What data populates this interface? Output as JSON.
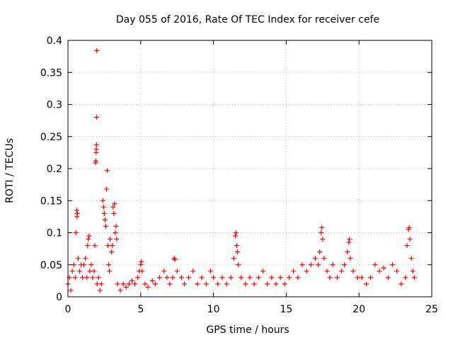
{
  "chart_data": {
    "type": "scatter",
    "title": "Day 055 of 2016, Rate Of TEC Index for receiver cefe",
    "xlabel": "GPS time / hours",
    "ylabel": "ROTI / TECUs",
    "xlim": [
      0,
      25
    ],
    "ylim": [
      0,
      0.4
    ],
    "grid": true,
    "marker": "plus",
    "color": "#ff0000",
    "x_ticks": [
      0,
      5,
      10,
      15,
      20,
      25
    ],
    "x_tick_labels": [
      "0",
      "5",
      "10",
      "15",
      "20",
      "25"
    ],
    "y_ticks": [
      0,
      0.05,
      0.1,
      0.15,
      0.2,
      0.25,
      0.3,
      0.35,
      0.4
    ],
    "y_tick_labels": [
      "0",
      "0.05",
      "0.1",
      "0.15",
      "0.2",
      "0.25",
      "0.3",
      "0.35",
      "0.4"
    ],
    "series": [
      {
        "name": "ROTI",
        "points": [
          [
            0.0,
            0.02
          ],
          [
            0.1,
            0.03
          ],
          [
            0.2,
            0.01
          ],
          [
            0.3,
            0.04
          ],
          [
            0.4,
            0.05
          ],
          [
            0.5,
            0.03
          ],
          [
            0.55,
            0.1
          ],
          [
            0.6,
            0.135
          ],
          [
            0.62,
            0.125
          ],
          [
            0.65,
            0.13
          ],
          [
            0.7,
            0.06
          ],
          [
            0.8,
            0.04
          ],
          [
            0.9,
            0.05
          ],
          [
            1.0,
            0.03
          ],
          [
            1.1,
            0.05
          ],
          [
            1.2,
            0.06
          ],
          [
            1.3,
            0.03
          ],
          [
            1.35,
            0.08
          ],
          [
            1.4,
            0.09
          ],
          [
            1.45,
            0.095
          ],
          [
            1.5,
            0.04
          ],
          [
            1.6,
            0.05
          ],
          [
            1.7,
            0.03
          ],
          [
            1.8,
            0.04
          ],
          [
            1.85,
            0.08
          ],
          [
            1.9,
            0.209
          ],
          [
            1.92,
            0.212
          ],
          [
            1.94,
            0.225
          ],
          [
            1.95,
            0.23
          ],
          [
            1.96,
            0.237
          ],
          [
            1.97,
            0.28
          ],
          [
            1.98,
            0.384
          ],
          [
            2.0,
            0.02
          ],
          [
            2.1,
            0.03
          ],
          [
            2.2,
            0.01
          ],
          [
            2.3,
            0.02
          ],
          [
            2.4,
            0.15
          ],
          [
            2.45,
            0.14
          ],
          [
            2.5,
            0.13
          ],
          [
            2.55,
            0.12
          ],
          [
            2.6,
            0.11
          ],
          [
            2.65,
            0.168
          ],
          [
            2.7,
            0.197
          ],
          [
            2.75,
            0.08
          ],
          [
            2.8,
            0.05
          ],
          [
            2.85,
            0.04
          ],
          [
            2.9,
            0.09
          ],
          [
            3.0,
            0.07
          ],
          [
            3.05,
            0.08
          ],
          [
            3.1,
            0.14
          ],
          [
            3.15,
            0.13
          ],
          [
            3.2,
            0.145
          ],
          [
            3.25,
            0.1
          ],
          [
            3.3,
            0.11
          ],
          [
            3.35,
            0.09
          ],
          [
            3.4,
            0.02
          ],
          [
            3.6,
            0.01
          ],
          [
            3.8,
            0.02
          ],
          [
            4.0,
            0.015
          ],
          [
            4.2,
            0.02
          ],
          [
            4.4,
            0.025
          ],
          [
            4.6,
            0.02
          ],
          [
            4.8,
            0.03
          ],
          [
            4.9,
            0.04
          ],
          [
            5.0,
            0.05
          ],
          [
            5.05,
            0.055
          ],
          [
            5.1,
            0.04
          ],
          [
            5.3,
            0.02
          ],
          [
            5.5,
            0.015
          ],
          [
            5.8,
            0.025
          ],
          [
            6.0,
            0.02
          ],
          [
            6.3,
            0.03
          ],
          [
            6.6,
            0.04
          ],
          [
            6.8,
            0.03
          ],
          [
            7.0,
            0.02
          ],
          [
            7.2,
            0.03
          ],
          [
            7.3,
            0.06
          ],
          [
            7.35,
            0.058
          ],
          [
            7.5,
            0.04
          ],
          [
            7.8,
            0.03
          ],
          [
            8.0,
            0.02
          ],
          [
            8.3,
            0.03
          ],
          [
            8.6,
            0.04
          ],
          [
            8.9,
            0.02
          ],
          [
            9.2,
            0.03
          ],
          [
            9.5,
            0.02
          ],
          [
            9.8,
            0.04
          ],
          [
            10.0,
            0.03
          ],
          [
            10.3,
            0.02
          ],
          [
            10.6,
            0.03
          ],
          [
            10.9,
            0.02
          ],
          [
            11.2,
            0.03
          ],
          [
            11.4,
            0.06
          ],
          [
            11.5,
            0.095
          ],
          [
            11.55,
            0.1
          ],
          [
            11.6,
            0.08
          ],
          [
            11.65,
            0.07
          ],
          [
            11.7,
            0.05
          ],
          [
            11.9,
            0.03
          ],
          [
            12.2,
            0.02
          ],
          [
            12.5,
            0.03
          ],
          [
            12.8,
            0.02
          ],
          [
            13.1,
            0.03
          ],
          [
            13.4,
            0.04
          ],
          [
            13.7,
            0.02
          ],
          [
            14.0,
            0.03
          ],
          [
            14.3,
            0.02
          ],
          [
            14.6,
            0.03
          ],
          [
            14.9,
            0.02
          ],
          [
            15.2,
            0.03
          ],
          [
            15.5,
            0.04
          ],
          [
            15.8,
            0.03
          ],
          [
            16.1,
            0.05
          ],
          [
            16.4,
            0.04
          ],
          [
            16.7,
            0.05
          ],
          [
            17.0,
            0.06
          ],
          [
            17.2,
            0.05
          ],
          [
            17.3,
            0.07
          ],
          [
            17.4,
            0.1
          ],
          [
            17.45,
            0.108
          ],
          [
            17.5,
            0.09
          ],
          [
            17.6,
            0.06
          ],
          [
            17.8,
            0.04
          ],
          [
            18.0,
            0.03
          ],
          [
            18.2,
            0.05
          ],
          [
            18.5,
            0.03
          ],
          [
            18.8,
            0.04
          ],
          [
            19.0,
            0.05
          ],
          [
            19.2,
            0.07
          ],
          [
            19.3,
            0.085
          ],
          [
            19.35,
            0.09
          ],
          [
            19.4,
            0.06
          ],
          [
            19.6,
            0.04
          ],
          [
            19.9,
            0.03
          ],
          [
            20.2,
            0.03
          ],
          [
            20.5,
            0.02
          ],
          [
            20.8,
            0.03
          ],
          [
            21.1,
            0.05
          ],
          [
            21.4,
            0.04
          ],
          [
            21.7,
            0.045
          ],
          [
            22.0,
            0.03
          ],
          [
            22.3,
            0.05
          ],
          [
            22.6,
            0.04
          ],
          [
            22.9,
            0.02
          ],
          [
            23.2,
            0.03
          ],
          [
            23.3,
            0.08
          ],
          [
            23.4,
            0.105
          ],
          [
            23.45,
            0.108
          ],
          [
            23.5,
            0.09
          ],
          [
            23.6,
            0.06
          ],
          [
            23.7,
            0.04
          ],
          [
            23.8,
            0.03
          ]
        ]
      }
    ]
  }
}
